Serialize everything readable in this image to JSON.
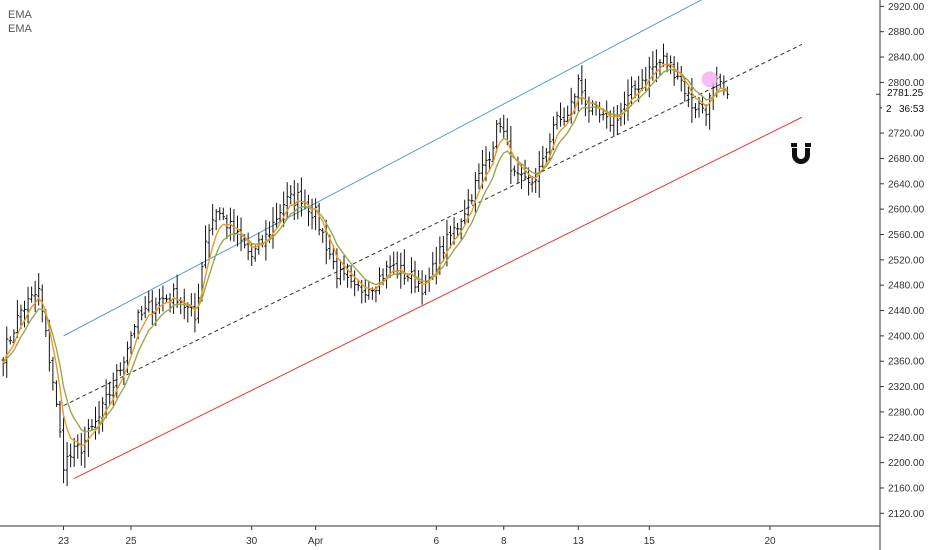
{
  "legend": {
    "line1": "EMA",
    "line2": "EMA"
  },
  "price_badges": {
    "last_price": "2781.25",
    "countdown": "36:53",
    "countdown_prefix": "2"
  },
  "icons": {
    "magnet": "magnet-icon"
  },
  "colors": {
    "upper_channel": "#5b9bd5",
    "lower_channel": "#e53935",
    "mid_channel": "#333333",
    "bars": "#111111",
    "ema_fast": "#e69a2a",
    "ema_slow": "#9aa84a",
    "highlight": "#f0a8f0"
  },
  "chart_data": {
    "type": "ohlc",
    "ylim": [
      2100,
      2930
    ],
    "yticks": [
      2120,
      2160,
      2200,
      2240,
      2280,
      2320,
      2360,
      2400,
      2440,
      2480,
      2520,
      2560,
      2600,
      2640,
      2680,
      2720,
      2760,
      2800,
      2840,
      2880,
      2920
    ],
    "ytick_labels": [
      "2120.00",
      "2160.00",
      "2200.00",
      "2240.00",
      "2280.00",
      "2320.00",
      "2360.00",
      "2400.00",
      "2440.00",
      "2480.00",
      "2520.00",
      "2560.00",
      "2600.00",
      "2640.00",
      "2680.00",
      "2720.00",
      "2760.00",
      "2800.00",
      "2840.00",
      "2880.00",
      "2920.00"
    ],
    "xtick_labels": [
      "23",
      "25",
      "30",
      "Apr",
      "6",
      "8",
      "13",
      "15",
      "20"
    ],
    "xtick_bar_index": [
      17,
      36,
      70,
      88,
      122,
      141,
      162,
      182,
      216
    ],
    "bar_count": 205,
    "anchors": [
      {
        "i": 0,
        "p": 2370
      },
      {
        "i": 5,
        "p": 2440
      },
      {
        "i": 10,
        "p": 2470
      },
      {
        "i": 14,
        "p": 2330
      },
      {
        "i": 17,
        "p": 2200
      },
      {
        "i": 22,
        "p": 2225
      },
      {
        "i": 27,
        "p": 2270
      },
      {
        "i": 33,
        "p": 2350
      },
      {
        "i": 37,
        "p": 2420
      },
      {
        "i": 43,
        "p": 2455
      },
      {
        "i": 49,
        "p": 2465
      },
      {
        "i": 54,
        "p": 2425
      },
      {
        "i": 57,
        "p": 2555
      },
      {
        "i": 60,
        "p": 2600
      },
      {
        "i": 66,
        "p": 2555
      },
      {
        "i": 70,
        "p": 2525
      },
      {
        "i": 74,
        "p": 2555
      },
      {
        "i": 79,
        "p": 2610
      },
      {
        "i": 84,
        "p": 2620
      },
      {
        "i": 88,
        "p": 2590
      },
      {
        "i": 94,
        "p": 2500
      },
      {
        "i": 99,
        "p": 2470
      },
      {
        "i": 105,
        "p": 2485
      },
      {
        "i": 109,
        "p": 2510
      },
      {
        "i": 114,
        "p": 2495
      },
      {
        "i": 119,
        "p": 2475
      },
      {
        "i": 123,
        "p": 2530
      },
      {
        "i": 128,
        "p": 2575
      },
      {
        "i": 132,
        "p": 2625
      },
      {
        "i": 137,
        "p": 2690
      },
      {
        "i": 140,
        "p": 2740
      },
      {
        "i": 144,
        "p": 2650
      },
      {
        "i": 148,
        "p": 2635
      },
      {
        "i": 152,
        "p": 2670
      },
      {
        "i": 155,
        "p": 2735
      },
      {
        "i": 159,
        "p": 2745
      },
      {
        "i": 162,
        "p": 2800
      },
      {
        "i": 165,
        "p": 2760
      },
      {
        "i": 170,
        "p": 2735
      },
      {
        "i": 174,
        "p": 2755
      },
      {
        "i": 178,
        "p": 2790
      },
      {
        "i": 182,
        "p": 2820
      },
      {
        "i": 186,
        "p": 2835
      },
      {
        "i": 190,
        "p": 2815
      },
      {
        "i": 194,
        "p": 2765
      },
      {
        "i": 198,
        "p": 2760
      },
      {
        "i": 201,
        "p": 2795
      },
      {
        "i": 204,
        "p": 2781.25
      }
    ],
    "upper_channel": [
      {
        "i": 17,
        "p": 2400
      },
      {
        "i": 200,
        "p": 2940
      }
    ],
    "lower_channel": [
      {
        "i": 20,
        "p": 2175
      },
      {
        "i": 225,
        "p": 2745
      }
    ],
    "mid_channel": [
      {
        "i": 17,
        "p": 2290
      },
      {
        "i": 225,
        "p": 2860
      }
    ],
    "highlight_point": {
      "i": 199,
      "p": 2805
    },
    "last_price": 2781.25
  }
}
